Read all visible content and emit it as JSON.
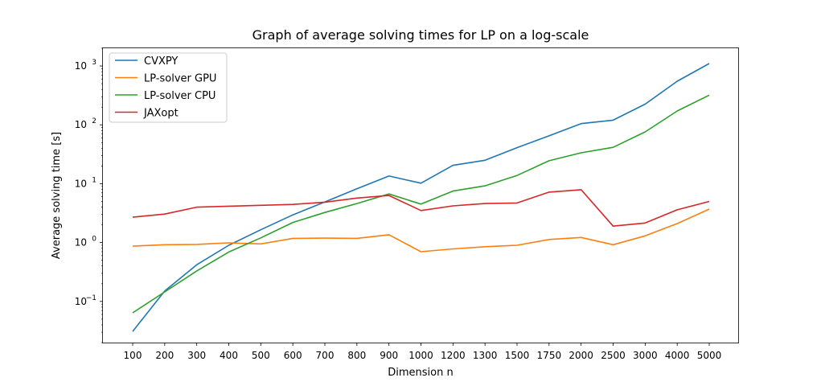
{
  "chart_data": {
    "type": "line",
    "title": "Graph of average solving times for LP on a log-scale",
    "xlabel": "Dimension n",
    "ylabel": "Average solving time [s]",
    "yscale": "log",
    "ylim": [
      0.02,
      2000
    ],
    "y_ticks": [
      0.1,
      1,
      10,
      100,
      1000
    ],
    "y_tick_labels": [
      {
        "base": "10",
        "exp": "−1"
      },
      {
        "base": "10",
        "exp": "0"
      },
      {
        "base": "10",
        "exp": "1"
      },
      {
        "base": "10",
        "exp": "2"
      },
      {
        "base": "10",
        "exp": "3"
      }
    ],
    "categories": [
      "100",
      "200",
      "300",
      "400",
      "500",
      "600",
      "700",
      "800",
      "900",
      "1000",
      "1200",
      "1300",
      "1500",
      "1750",
      "2000",
      "2500",
      "3000",
      "4000",
      "5000"
    ],
    "legend_position": "top-left",
    "grid": false,
    "series": [
      {
        "name": "CVXPY",
        "color": "#1f77b4",
        "values": [
          0.031,
          0.15,
          0.42,
          0.9,
          1.65,
          2.95,
          4.9,
          8.2,
          13.5,
          10.2,
          20.5,
          25,
          41,
          65,
          105,
          120,
          225,
          550,
          1100
        ]
      },
      {
        "name": "LP-solver GPU",
        "color": "#ff7f0e",
        "values": [
          0.87,
          0.92,
          0.93,
          0.99,
          0.95,
          1.18,
          1.19,
          1.18,
          1.36,
          0.7,
          0.78,
          0.85,
          0.9,
          1.13,
          1.22,
          0.92,
          1.3,
          2.1,
          3.7
        ]
      },
      {
        "name": "LP-solver CPU",
        "color": "#2ca02c",
        "values": [
          0.064,
          0.145,
          0.33,
          0.69,
          1.2,
          2.2,
          3.25,
          4.6,
          6.7,
          4.5,
          7.5,
          9.2,
          13.8,
          24.5,
          33.5,
          41.5,
          76,
          172,
          320
        ]
      },
      {
        "name": "JAXopt",
        "color": "#d62728",
        "values": [
          2.7,
          3.05,
          4.0,
          4.15,
          4.3,
          4.45,
          4.85,
          5.7,
          6.3,
          3.5,
          4.2,
          4.6,
          4.7,
          7.2,
          7.9,
          1.9,
          2.15,
          3.6,
          5.0
        ]
      }
    ]
  }
}
